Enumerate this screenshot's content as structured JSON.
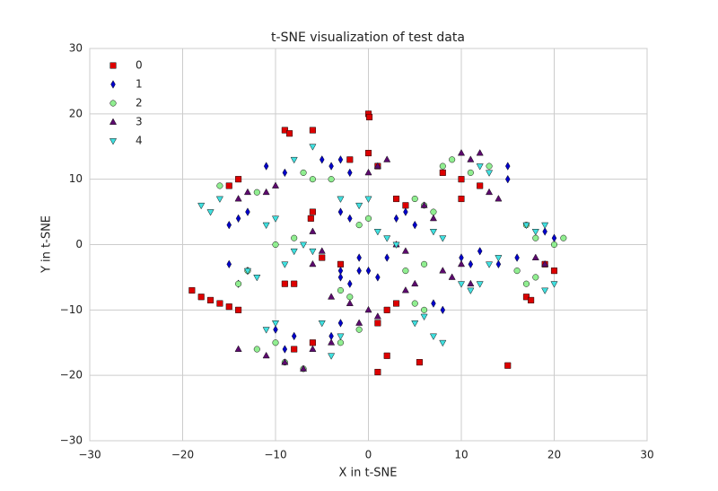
{
  "chart_data": {
    "type": "scatter",
    "title": "t-SNE visualization of test data",
    "xlabel": "X in t-SNE",
    "ylabel": "Y in t-SNE",
    "xlim": [
      -30,
      30
    ],
    "ylim": [
      -30,
      30
    ],
    "xticks": [
      {
        "value": -30,
        "label": "−30"
      },
      {
        "value": -20,
        "label": "−20"
      },
      {
        "value": -10,
        "label": "−10"
      },
      0,
      10,
      20,
      30
    ],
    "yticks": [
      {
        "value": -30,
        "label": "−30"
      },
      {
        "value": -20,
        "label": "−20"
      },
      {
        "value": -10,
        "label": "−10"
      },
      0,
      10,
      20,
      30
    ],
    "grid": true,
    "legend": "upper left",
    "series": [
      {
        "name": "0",
        "color": "#dd0000",
        "marker": "square",
        "x": [
          -19,
          -18,
          -17,
          -16,
          -15,
          -14,
          -9,
          -8.5,
          -6,
          0,
          0.1,
          -9,
          -8,
          -6,
          -6.2,
          2,
          3,
          1,
          1,
          2,
          5.5,
          15,
          0,
          1,
          -2,
          8,
          10,
          12,
          -15,
          -14,
          17,
          17.5,
          -5,
          -3,
          4,
          3,
          -8,
          -6,
          19,
          20,
          10
        ],
        "y": [
          -7,
          -8,
          -8.5,
          -9,
          -9.5,
          -10,
          17.5,
          17,
          17.5,
          20,
          19.5,
          -6,
          -6,
          5,
          4,
          -10,
          -9,
          -12,
          -19.5,
          -17,
          -18,
          -18.5,
          14,
          12,
          13,
          11,
          10,
          9,
          9,
          10,
          -8,
          -8.5,
          -2,
          -3,
          6,
          7,
          -16,
          -15,
          -3,
          -4,
          7
        ]
      },
      {
        "name": "1",
        "color": "#0000cc",
        "marker": "diamond",
        "x": [
          -15,
          -14,
          -13,
          -15,
          -13,
          -14,
          -10,
          -8,
          -9,
          -3,
          -1,
          1,
          0,
          -3,
          -2,
          -4,
          -3,
          -2,
          -5,
          -3,
          -2,
          3,
          4,
          5,
          7,
          8,
          12,
          11,
          10,
          15,
          15,
          19,
          20,
          14,
          16,
          -11,
          -9,
          -4,
          -3,
          2,
          -1
        ],
        "y": [
          3,
          4,
          5,
          -3,
          -4,
          -6,
          -13,
          -14,
          -16,
          -4,
          -4,
          -5,
          -4,
          -5,
          -6,
          12,
          13,
          11,
          13,
          5,
          4,
          4,
          5,
          3,
          -9,
          -10,
          -1,
          -3,
          -2,
          12,
          10,
          2,
          1,
          -3,
          -2,
          12,
          11,
          -14,
          -12,
          -2,
          -2
        ]
      },
      {
        "name": "2",
        "color": "#90ee90",
        "marker": "circle",
        "x": [
          -16,
          -12,
          -10,
          -12,
          -7,
          -9,
          -3,
          -1,
          -6,
          -4,
          -7,
          -1,
          0,
          -3,
          -2,
          5,
          6,
          7,
          5,
          6,
          8,
          9,
          11,
          13,
          17,
          18,
          20,
          21,
          17,
          18,
          16,
          -13,
          -14,
          4,
          6,
          -10,
          -8
        ],
        "y": [
          9,
          8,
          -15,
          -16,
          -19,
          -18,
          -15,
          -13,
          10,
          10,
          11,
          3,
          4,
          -7,
          -8,
          7,
          6,
          5,
          -9,
          -10,
          12,
          13,
          11,
          12,
          3,
          1,
          0,
          1,
          -6,
          -5,
          -4,
          -4,
          -6,
          -4,
          -3,
          0,
          1
        ]
      },
      {
        "name": "3",
        "color": "#5c0a6e",
        "marker": "triangle-up",
        "x": [
          -14,
          -13,
          -11,
          -10,
          -14,
          -11,
          -9,
          -7,
          -6,
          -5,
          -6,
          -4,
          -2,
          0,
          4,
          5,
          1,
          2,
          0,
          -4,
          -6,
          8,
          9,
          10,
          11,
          10,
          11,
          12,
          6,
          7,
          18,
          19,
          13,
          14,
          -1,
          1,
          3,
          4
        ],
        "y": [
          7,
          8,
          8,
          9,
          -16,
          -17,
          -18,
          -19,
          2,
          -1,
          -3,
          -8,
          -9,
          -10,
          -7,
          -6,
          12,
          13,
          11,
          -15,
          -16,
          -4,
          -5,
          -3,
          -6,
          14,
          13,
          14,
          6,
          4,
          -2,
          -3,
          8,
          7,
          -12,
          -11,
          0,
          -1
        ]
      },
      {
        "name": "4",
        "color": "#40e0e0",
        "marker": "triangle-down",
        "x": [
          -17,
          -18,
          -16,
          -13,
          -12,
          -10,
          -11,
          -10,
          -11,
          -7,
          -8,
          -9,
          -6,
          -3,
          -1,
          0,
          -5,
          -3,
          -4,
          2,
          3,
          1,
          7,
          8,
          10,
          12,
          11,
          13,
          14,
          17,
          18,
          19,
          -8,
          -6,
          5,
          6,
          12,
          13,
          7,
          8,
          20,
          19
        ],
        "y": [
          5,
          6,
          7,
          -4,
          -5,
          -12,
          -13,
          4,
          3,
          0,
          -1,
          -3,
          -1,
          7,
          6,
          7,
          -12,
          -14,
          -17,
          1,
          0,
          2,
          -14,
          -15,
          -6,
          -6,
          -7,
          -3,
          -2,
          3,
          2,
          3,
          13,
          15,
          -12,
          -11,
          12,
          11,
          2,
          1,
          -6,
          -7
        ]
      }
    ]
  }
}
